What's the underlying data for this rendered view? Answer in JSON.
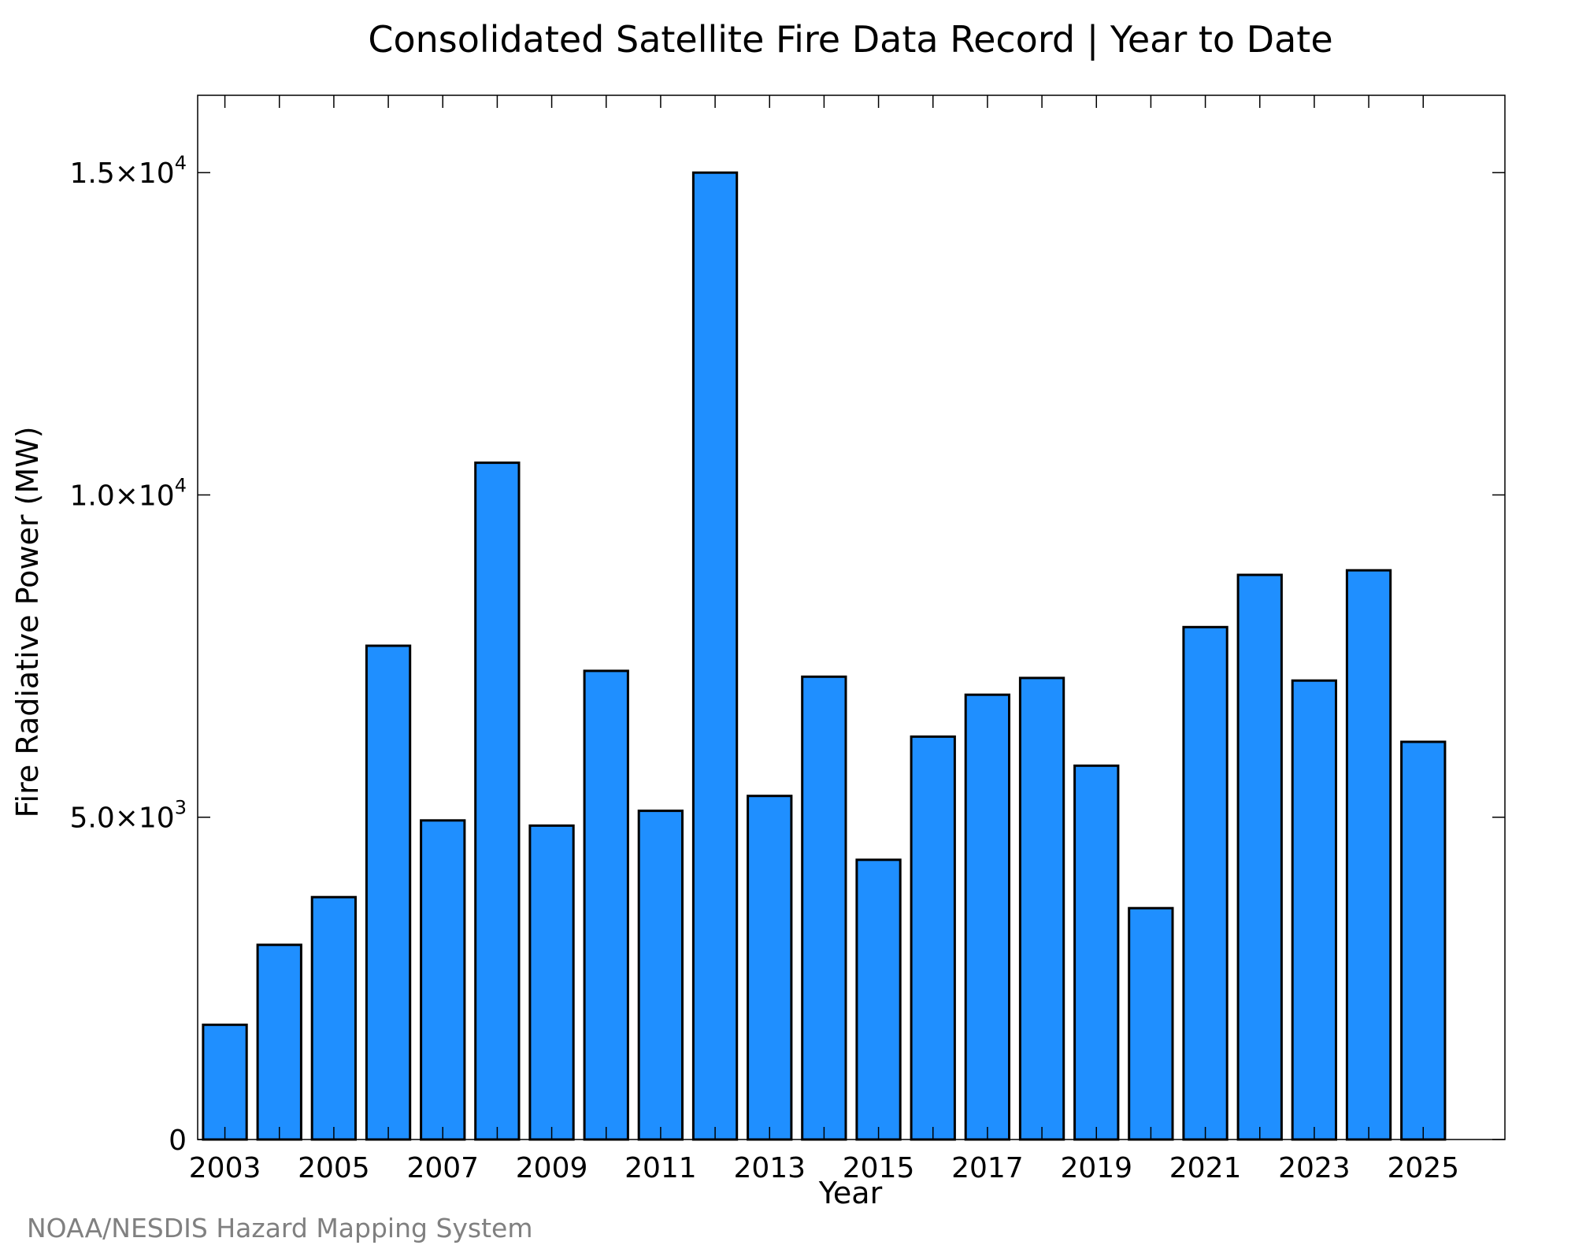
{
  "credit": "NOAA/NESDIS Hazard Mapping System",
  "colors": {
    "bar_fill": "#1f8fff",
    "bar_stroke": "#000000",
    "credit": "#808080"
  },
  "chart_data": {
    "type": "bar",
    "title": "Consolidated Satellite Fire Data Record | Year to Date",
    "xlabel": "Year",
    "ylabel": "Fire Radiative Power (MW)",
    "x": [
      2003,
      2004,
      2005,
      2006,
      2007,
      2008,
      2009,
      2010,
      2011,
      2012,
      2013,
      2014,
      2015,
      2016,
      2017,
      2018,
      2019,
      2020,
      2021,
      2022,
      2023,
      2024,
      2025
    ],
    "values": [
      1780,
      3020,
      3760,
      7660,
      4950,
      10500,
      4870,
      7270,
      5100,
      15000,
      5330,
      7180,
      4340,
      6250,
      6900,
      7160,
      5800,
      3590,
      7950,
      8760,
      7120,
      8830,
      6170
    ],
    "xlim": [
      2002.5,
      2026.5
    ],
    "ylim": [
      0,
      16200
    ],
    "x_ticks": [
      2003,
      2005,
      2007,
      2009,
      2011,
      2013,
      2015,
      2017,
      2019,
      2021,
      2023,
      2025
    ],
    "y_ticks": [
      {
        "value": 0,
        "mantissa": "0",
        "exponent": ""
      },
      {
        "value": 5000,
        "mantissa": "5.0×10",
        "exponent": "3"
      },
      {
        "value": 10000,
        "mantissa": "1.0×10",
        "exponent": "4"
      },
      {
        "value": 15000,
        "mantissa": "1.5×10",
        "exponent": "4"
      }
    ],
    "grid": false,
    "legend": "none"
  }
}
